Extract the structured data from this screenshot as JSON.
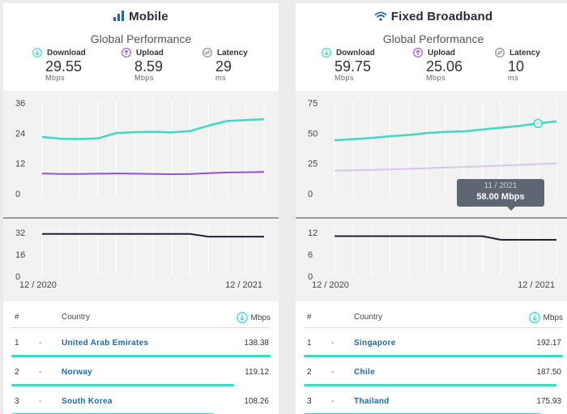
{
  "panels": [
    {
      "title": "Mobile",
      "icon": "signal-bars-icon",
      "subtitle": "Global Performance",
      "metrics": {
        "download": {
          "label": "Download",
          "value": "29.55",
          "unit": "Mbps"
        },
        "upload": {
          "label": "Upload",
          "value": "8.59",
          "unit": "Mbps"
        },
        "latency": {
          "label": "Latency",
          "value": "29",
          "unit": "ms"
        }
      },
      "table": {
        "rank_header": "#",
        "country_header": "Country",
        "speed_header": "Mbps",
        "rows": [
          {
            "rank": "1",
            "change": "-",
            "country": "United Arab Emirates",
            "speed": "138.38",
            "bar": 1.0
          },
          {
            "rank": "2",
            "change": "-",
            "country": "Norway",
            "speed": "119.12",
            "bar": 0.86
          },
          {
            "rank": "3",
            "change": "-",
            "country": "South Korea",
            "speed": "108.26",
            "bar": 0.78
          }
        ]
      }
    },
    {
      "title": "Fixed Broadband",
      "icon": "wifi-icon",
      "subtitle": "Global Performance",
      "metrics": {
        "download": {
          "label": "Download",
          "value": "59.75",
          "unit": "Mbps"
        },
        "upload": {
          "label": "Upload",
          "value": "25.06",
          "unit": "Mbps"
        },
        "latency": {
          "label": "Latency",
          "value": "10",
          "unit": "ms"
        }
      },
      "tooltip": {
        "date": "11 / 2021",
        "value": "58.00 Mbps"
      },
      "table": {
        "rank_header": "#",
        "country_header": "Country",
        "speed_header": "Mbps",
        "rows": [
          {
            "rank": "1",
            "change": "-",
            "country": "Singapore",
            "speed": "192.17",
            "bar": 1.0
          },
          {
            "rank": "2",
            "change": "-",
            "country": "Chile",
            "speed": "187.50",
            "bar": 0.975
          },
          {
            "rank": "3",
            "change": "-",
            "country": "Thailand",
            "speed": "175.93",
            "bar": 0.915
          }
        ]
      }
    }
  ],
  "colors": {
    "download": "#3ed8c3",
    "upload": "#9b4fc8",
    "upload_light": "#d9c6ec",
    "latency": "#1e2233",
    "accent": "#3ed8c3"
  },
  "chart_data": [
    {
      "type": "line",
      "panel": "Mobile",
      "x": [
        "12 / 2020",
        "1 / 2021",
        "2 / 2021",
        "3 / 2021",
        "4 / 2021",
        "5 / 2021",
        "6 / 2021",
        "7 / 2021",
        "8 / 2021",
        "9 / 2021",
        "10 / 2021",
        "11 / 2021",
        "12 / 2021"
      ],
      "x_tick_labels": [
        "12 / 2020",
        "12 / 2021"
      ],
      "speed": {
        "yticks": [
          "36",
          "24",
          "12",
          "0"
        ],
        "ylim": [
          0,
          36
        ],
        "series": [
          {
            "name": "Download",
            "values": [
              22.5,
              21.8,
              21.7,
              21.9,
              24.0,
              24.4,
              24.5,
              24.3,
              24.8,
              27.0,
              28.8,
              29.2,
              29.55
            ]
          },
          {
            "name": "Upload",
            "values": [
              8.0,
              7.8,
              7.8,
              7.9,
              8.0,
              7.9,
              7.8,
              7.7,
              7.8,
              8.1,
              8.4,
              8.5,
              8.59
            ]
          }
        ]
      },
      "latency": {
        "yticks": [
          "32",
          "16",
          "0"
        ],
        "ylim": [
          0,
          32
        ],
        "series": [
          {
            "name": "Latency",
            "values": [
              31,
              31,
              31,
              31,
              31,
              31,
              31,
              31,
              31,
              29,
              29,
              29,
              29
            ]
          }
        ]
      },
      "grid": true
    },
    {
      "type": "line",
      "panel": "Fixed Broadband",
      "x": [
        "12 / 2020",
        "1 / 2021",
        "2 / 2021",
        "3 / 2021",
        "4 / 2021",
        "5 / 2021",
        "6 / 2021",
        "7 / 2021",
        "8 / 2021",
        "9 / 2021",
        "10 / 2021",
        "11 / 2021",
        "12 / 2021"
      ],
      "x_tick_labels": [
        "12 / 2020",
        "12 / 2021"
      ],
      "speed": {
        "yticks": [
          "75",
          "50",
          "25",
          "0"
        ],
        "ylim": [
          0,
          75
        ],
        "series": [
          {
            "name": "Download",
            "values": [
              44.0,
              45.0,
              46.0,
              47.5,
              48.5,
              50.0,
              51.0,
              51.5,
              53.0,
              54.5,
              56.0,
              58.0,
              59.75
            ]
          },
          {
            "name": "Upload",
            "values": [
              19.0,
              19.3,
              19.6,
              20.0,
              20.5,
              21.0,
              21.6,
              22.0,
              22.5,
              23.2,
              23.8,
              24.4,
              25.06
            ]
          }
        ]
      },
      "latency": {
        "yticks": [
          "12",
          "6",
          "0"
        ],
        "ylim": [
          0,
          12
        ],
        "series": [
          {
            "name": "Latency",
            "values": [
              11,
              11,
              11,
              11,
              11,
              11,
              11,
              11,
              11,
              10,
              10,
              10,
              10
            ]
          }
        ]
      },
      "grid": true,
      "highlight_index": 11
    }
  ]
}
